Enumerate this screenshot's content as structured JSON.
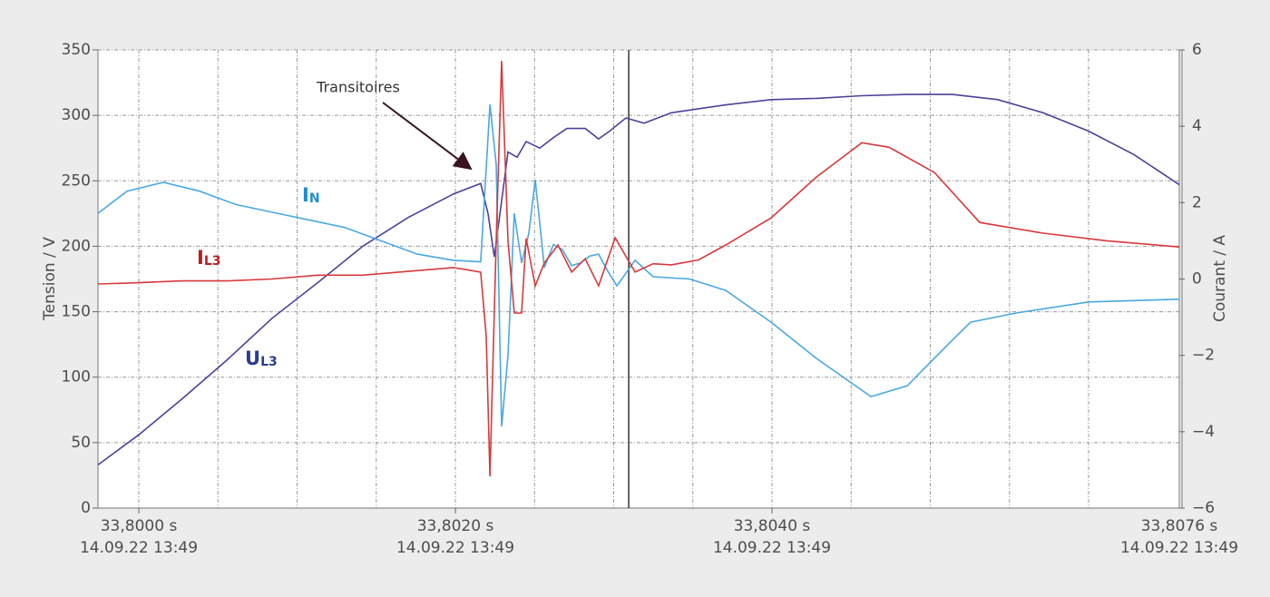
{
  "chart_data": {
    "type": "line",
    "annotations": [
      {
        "text": "Transitoires"
      }
    ],
    "ylabel": "Tension / V",
    "y2label": "Courant / A",
    "xlim": [
      33.799742,
      33.806573
    ],
    "xticks": [
      {
        "value": 33.8,
        "label": "33,8000 s",
        "date": "14.09.22  13:49"
      },
      {
        "value": 33.802,
        "label": "33,8020 s",
        "date": "14.09.22  13:49"
      },
      {
        "value": 33.804,
        "label": "33,8040 s",
        "date": "14.09.22  13:49"
      }
    ],
    "x_end_label": {
      "label": "33,8076 s",
      "date": "14.09.22  13:49"
    },
    "xgrid": [
      33.8,
      33.8005,
      33.801,
      33.8015,
      33.802,
      33.8025,
      33.803,
      33.8035,
      33.804,
      33.8045,
      33.805,
      33.8055,
      33.806
    ],
    "cursor_x": 33.803095,
    "ylim": [
      0,
      350
    ],
    "yticks": [
      0,
      50,
      100,
      150,
      200,
      250,
      300,
      350
    ],
    "y2lim": [
      -6,
      6
    ],
    "y2ticks": [
      {
        "value": -6,
        "label": "−6"
      },
      {
        "value": -4,
        "label": "−4"
      },
      {
        "value": -2,
        "label": "−2"
      },
      0,
      2,
      4,
      6
    ],
    "grid": true,
    "series": [
      {
        "name": "UL3",
        "color": "#4b4298",
        "label_color": "#2b3d8f",
        "x": [
          33.799742,
          33.8,
          33.800269,
          33.800556,
          33.800842,
          33.801129,
          33.801415,
          33.801702,
          33.801989,
          33.80216,
          33.802206,
          33.802246,
          33.802287,
          33.802332,
          33.80239,
          33.802447,
          33.802533,
          33.802619,
          33.802705,
          33.80282,
          33.802905,
          33.802974,
          33.803077,
          33.803192,
          33.803364,
          33.803708,
          33.803994,
          33.804281,
          33.804567,
          33.804854,
          33.80514,
          33.805427,
          33.805713,
          33.806,
          33.806287,
          33.806573
        ],
        "values": [
          33,
          56,
          83,
          113,
          145,
          172,
          200,
          222,
          240,
          248,
          225,
          192,
          230,
          272,
          268,
          280,
          275,
          283,
          290,
          290,
          282,
          288,
          298,
          294,
          302,
          308,
          312,
          313,
          315,
          316,
          316,
          312,
          302,
          288,
          270,
          247
        ]
      },
      {
        "name": "IN",
        "color": "#4aa8e0",
        "label_color": "#1b8fd0",
        "axis": "y2",
        "x": [
          33.799742,
          33.799926,
          33.800155,
          33.800384,
          33.800613,
          33.800842,
          33.801072,
          33.801301,
          33.80153,
          33.801759,
          33.801989,
          33.80216,
          33.802218,
          33.802258,
          33.802292,
          33.802332,
          33.802372,
          33.802418,
          33.802464,
          33.802504,
          33.802562,
          33.802619,
          33.802676,
          33.802734,
          33.802791,
          33.802848,
          33.802905,
          33.802963,
          33.80302,
          33.803135,
          33.803249,
          33.803479,
          33.803708,
          33.803994,
          33.804281,
          33.804625,
          33.804854,
          33.804968,
          33.80514,
          33.805255,
          33.805542,
          33.806,
          33.806573
        ],
        "values": [
          1.72,
          2.3,
          2.53,
          2.3,
          1.95,
          1.75,
          1.55,
          1.35,
          1.0,
          0.65,
          0.49,
          0.45,
          4.57,
          3.0,
          -3.86,
          -2.0,
          1.72,
          0.42,
          1.2,
          2.6,
          0.3,
          0.9,
          0.77,
          0.35,
          0.42,
          0.6,
          0.65,
          0.2,
          -0.18,
          0.49,
          0.06,
          0.0,
          -0.3,
          -1.13,
          -2.08,
          -3.08,
          -2.8,
          -2.32,
          -1.6,
          -1.13,
          -0.89,
          -0.6,
          -0.53
        ]
      },
      {
        "name": "IL3",
        "color": "#d8393b",
        "label_color": "#b81e22",
        "axis": "y2",
        "x": [
          33.799742,
          33.799983,
          33.800269,
          33.800556,
          33.800842,
          33.801129,
          33.801415,
          33.801702,
          33.801989,
          33.80216,
          33.802195,
          33.802218,
          33.802258,
          33.802292,
          33.802332,
          33.802372,
          33.802418,
          33.802447,
          33.802504,
          33.802562,
          33.802648,
          33.802734,
          33.80282,
          33.802905,
          33.803009,
          33.803135,
          33.803249,
          33.803364,
          33.803536,
          33.803708,
          33.803994,
          33.804281,
          33.804567,
          33.804739,
          33.805026,
          33.805312,
          33.805713,
          33.806115,
          33.806573
        ],
        "values": [
          -0.13,
          -0.1,
          -0.05,
          -0.05,
          0.0,
          0.1,
          0.1,
          0.2,
          0.3,
          0.18,
          -1.5,
          -5.17,
          1.0,
          5.71,
          1.0,
          -0.89,
          -0.89,
          1.06,
          -0.18,
          0.42,
          0.89,
          0.18,
          0.53,
          -0.18,
          1.08,
          0.18,
          0.4,
          0.37,
          0.5,
          0.89,
          1.6,
          2.67,
          3.57,
          3.45,
          2.79,
          1.48,
          1.2,
          1.0,
          0.84
        ]
      }
    ]
  }
}
